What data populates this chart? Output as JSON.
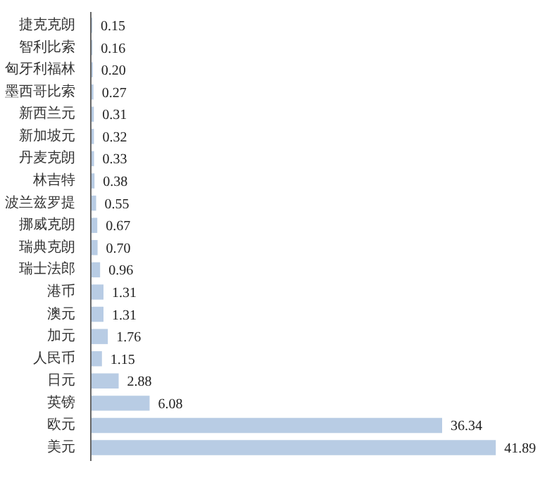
{
  "chart_data": {
    "type": "bar",
    "orientation": "horizontal",
    "categories": [
      "捷克克朗",
      "智利比索",
      "匈牙利福林",
      "墨西哥比索",
      "新西兰元",
      "新加坡元",
      "丹麦克朗",
      "林吉特",
      "波兰兹罗提",
      "挪威克朗",
      "瑞典克朗",
      "瑞士法郎",
      "港币",
      "澳元",
      "加元",
      "人民币",
      "日元",
      "英镑",
      "欧元",
      "美元"
    ],
    "values": [
      0.15,
      0.16,
      0.2,
      0.27,
      0.31,
      0.32,
      0.33,
      0.38,
      0.55,
      0.67,
      0.7,
      0.96,
      1.31,
      1.31,
      1.76,
      1.15,
      2.88,
      6.08,
      36.34,
      41.89
    ],
    "value_labels": [
      "0.15",
      "0.16",
      "0.20",
      "0.27",
      "0.31",
      "0.32",
      "0.33",
      "0.38",
      "0.55",
      "0.67",
      "0.70",
      "0.96",
      "1.31",
      "1.31",
      "1.76",
      "1.15",
      "2.88",
      "6.08",
      "36.34",
      "41.89"
    ],
    "color": "#b8cce4"
  }
}
